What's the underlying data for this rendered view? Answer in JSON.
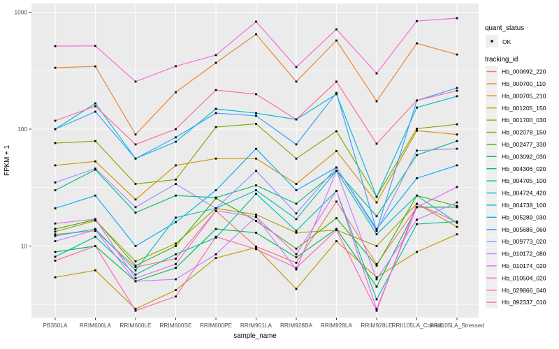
{
  "figure": {
    "background": "#FFFFFF"
  },
  "panel": {
    "bg": "#EBEBEB",
    "grid_color": "#FFFFFF",
    "point_color": "#000000",
    "axis_text_color": "#4D4D4D",
    "legend_key_bg": "#EFEFEF"
  },
  "chart_data": {
    "type": "line",
    "title": "",
    "xlabel": "sample_name",
    "ylabel": "FPKM + 1",
    "x_categories": [
      "PB350LA",
      "RRIM600LA",
      "RRIM600LE",
      "RRIM600SE",
      "RRIM600PE",
      "RRIM901LA",
      "RRIM928BA",
      "RRIM928LA",
      "RRIM928LE",
      "RRII105LA_Control",
      "RRII105LA_Stressed"
    ],
    "y_axis": {
      "scale": "log10",
      "ticks": [
        10,
        100,
        1000
      ],
      "tick_labels": [
        "10",
        "100",
        "1000"
      ],
      "minor_gridlines": [
        3.162,
        31.62,
        316.2
      ],
      "range": [
        2.44,
        1190
      ]
    },
    "grid": "major+minor",
    "legend_position": "right",
    "marker": "black-point",
    "series": [
      {
        "name": "Hb_000692_220",
        "color": "#F8766D",
        "values": [
          12.6,
          13.5,
          6.6,
          7.8,
          20,
          9.9,
          7.2,
          24,
          7.0,
          21.5,
          21.5
        ]
      },
      {
        "name": "Hb_000700_110",
        "color": "#EA8331",
        "values": [
          335,
          344,
          90,
          207,
          369,
          648,
          255,
          573,
          173,
          542,
          435
        ]
      },
      {
        "name": "Hb_000705_210",
        "color": "#D89000",
        "values": [
          49,
          53,
          25,
          49,
          56,
          56,
          34,
          65,
          23.6,
          97,
          90
        ]
      },
      {
        "name": "Hb_001205_150",
        "color": "#C09B00",
        "values": [
          5.4,
          6.2,
          2.9,
          4.2,
          7.9,
          9.7,
          4.3,
          11,
          5.4,
          8.9,
          12.6
        ]
      },
      {
        "name": "Hb_001700_030",
        "color": "#A3A500",
        "values": [
          13.3,
          16.5,
          7.4,
          10.5,
          21,
          18.6,
          13,
          13.7,
          10,
          23,
          14.6
        ]
      },
      {
        "name": "Hb_002078_150",
        "color": "#7CAE00",
        "values": [
          76,
          79,
          34,
          37,
          104,
          111,
          56,
          96,
          26.4,
          101,
          110
        ]
      },
      {
        "name": "Hb_002477_330",
        "color": "#39B600",
        "values": [
          14.0,
          16.8,
          6.8,
          10,
          25.6,
          16.4,
          9.5,
          17.3,
          6.8,
          27,
          22
        ]
      },
      {
        "name": "Hb_003092_030",
        "color": "#00BB4E",
        "values": [
          8.9,
          10,
          5.0,
          6.5,
          14,
          13,
          8,
          14,
          4.5,
          21.5,
          21.5
        ]
      },
      {
        "name": "Hb_004306_020",
        "color": "#00BF7D",
        "values": [
          30,
          45,
          19.3,
          27,
          26,
          33,
          23,
          44,
          18,
          60,
          79
        ]
      },
      {
        "name": "Hb_004705_100",
        "color": "#00C1A3",
        "values": [
          8.1,
          12,
          5.7,
          8.5,
          11.8,
          28,
          13.5,
          29.6,
          3.5,
          15.4,
          16.2
        ]
      },
      {
        "name": "Hb_004724_420",
        "color": "#00BFC4",
        "values": [
          12.2,
          14,
          6.2,
          17.5,
          21,
          30,
          17,
          44,
          12.6,
          27,
          15.8
        ]
      },
      {
        "name": "Hb_004738_100",
        "color": "#00BAE0",
        "values": [
          100,
          166,
          56,
          78,
          149,
          137,
          121,
          199,
          26.4,
          153,
          191
        ]
      },
      {
        "name": "Hb_005289_030",
        "color": "#00B0F6",
        "values": [
          21,
          27,
          10,
          16,
          30,
          68,
          30,
          47,
          14,
          38,
          49
        ]
      },
      {
        "name": "Hb_005686_060",
        "color": "#35A2FF",
        "values": [
          100,
          141,
          56,
          85,
          137,
          130,
          74,
          204,
          13.5,
          176,
          225
        ]
      },
      {
        "name": "Hb_009773_020",
        "color": "#9590FF",
        "values": [
          35,
          46,
          21.5,
          34,
          21,
          44,
          19,
          47,
          13.5,
          65.5,
          68
        ]
      },
      {
        "name": "Hb_010172_080",
        "color": "#C77CFF",
        "values": [
          11.0,
          13.7,
          5.0,
          5.2,
          8.5,
          17.8,
          6.3,
          44,
          5.2,
          16.8,
          23.6
        ]
      },
      {
        "name": "Hb_010174_020",
        "color": "#E76BF3",
        "values": [
          15.6,
          17,
          5.3,
          7.0,
          20,
          17.8,
          8.5,
          29.6,
          2.9,
          21.5,
          32
        ]
      },
      {
        "name": "Hb_010504_020",
        "color": "#FA62DB",
        "values": [
          513,
          515,
          255,
          345,
          430,
          831,
          340,
          714,
          300,
          840,
          890
        ]
      },
      {
        "name": "Hb_029866_040",
        "color": "#FF62BC",
        "values": [
          7.5,
          10,
          2.8,
          3.7,
          12,
          9.4,
          6.5,
          13.7,
          2.8,
          23,
          16
        ]
      },
      {
        "name": "Hb_092337_010",
        "color": "#FF6A98",
        "values": [
          118,
          157,
          74,
          100,
          216,
          199,
          121,
          255,
          75,
          176,
          213
        ]
      }
    ]
  },
  "legend": {
    "quant_status_title": "quant_status",
    "quant_status_items": [
      {
        "label": "OK",
        "marker": "black-point",
        "color": "#000000"
      }
    ],
    "tracking_id_title": "tracking_id"
  }
}
